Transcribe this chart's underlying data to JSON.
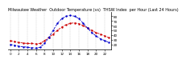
{
  "title": "Milwaukee Weather  Outdoor Temperature (vs)  THSW Index  per Hour (Last 24 Hours)",
  "bg_color": "#ffffff",
  "plot_bg_color": "#ffffff",
  "grid_color": "#aaaaaa",
  "hours": [
    0,
    1,
    2,
    3,
    4,
    5,
    6,
    7,
    8,
    9,
    10,
    11,
    12,
    13,
    14,
    15,
    16,
    17,
    18,
    19,
    20,
    21,
    22,
    23
  ],
  "temp": [
    28,
    26,
    24,
    23,
    22,
    22,
    21,
    22,
    28,
    35,
    42,
    50,
    57,
    62,
    65,
    66,
    64,
    60,
    55,
    50,
    45,
    42,
    38,
    34
  ],
  "thsw": [
    20,
    18,
    16,
    15,
    14,
    13,
    12,
    14,
    22,
    35,
    50,
    65,
    75,
    80,
    82,
    80,
    75,
    65,
    55,
    45,
    38,
    32,
    28,
    24
  ],
  "temp_color": "#cc0000",
  "thsw_color": "#0000cc",
  "ylim_min": 10,
  "ylim_max": 90,
  "yticks": [
    20,
    30,
    40,
    50,
    60,
    70,
    80
  ],
  "line_style": "--",
  "marker": ".",
  "markersize": 1.5,
  "linewidth": 0.6,
  "title_fontsize": 3.5,
  "tick_fontsize": 3.0,
  "grid_linestyle": "--",
  "grid_alpha": 0.7,
  "grid_linewidth": 0.3
}
